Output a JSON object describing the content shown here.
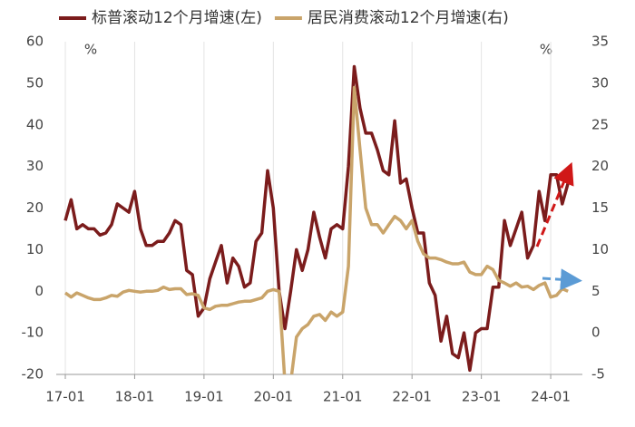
{
  "chart_data": {
    "type": "line",
    "categories": [
      "17-01",
      null,
      null,
      null,
      null,
      null,
      null,
      null,
      null,
      null,
      null,
      null,
      "18-01",
      null,
      null,
      null,
      null,
      null,
      null,
      null,
      null,
      null,
      null,
      null,
      "19-01",
      null,
      null,
      null,
      null,
      null,
      null,
      null,
      null,
      null,
      null,
      null,
      "20-01",
      null,
      null,
      null,
      null,
      null,
      null,
      null,
      null,
      null,
      null,
      null,
      "21-01",
      null,
      null,
      null,
      null,
      null,
      null,
      null,
      null,
      null,
      null,
      null,
      "22-01",
      null,
      null,
      null,
      null,
      null,
      null,
      null,
      null,
      null,
      null,
      null,
      "23-01",
      null,
      null,
      null,
      null,
      null,
      null,
      null,
      null,
      null,
      null,
      null,
      "24-01",
      null,
      null,
      null
    ],
    "series": [
      {
        "name": "标普滚动12个月增速(左)",
        "color": "#7b1c1c",
        "values": [
          17,
          22,
          15,
          16,
          15,
          15,
          13.5,
          14,
          16,
          21,
          20,
          19,
          24,
          15,
          11,
          11,
          12,
          12,
          14,
          17,
          16,
          5,
          4,
          -6,
          -4,
          3,
          7,
          11,
          2,
          8,
          6,
          1,
          2,
          12,
          14,
          29,
          20,
          0,
          -9,
          0,
          10,
          5,
          10,
          19,
          13,
          8,
          15,
          16,
          15,
          30,
          54,
          44,
          38,
          38,
          34,
          29,
          28,
          41,
          26,
          27,
          20,
          14,
          14,
          2,
          -1,
          -12,
          -6,
          -15,
          -16,
          -10,
          -19,
          -10,
          -9,
          -9,
          1,
          1,
          17,
          11,
          15,
          19,
          8,
          11,
          24,
          17,
          28,
          28,
          21,
          26
        ]
      },
      {
        "name": "居民消费滚动12个月增速(右)",
        "color": "#c9a46a",
        "axis": "y2",
        "values": [
          4.8,
          4.3,
          4.8,
          4.5,
          4.2,
          4,
          4,
          4.2,
          4.5,
          4.4,
          4.9,
          5.1,
          5,
          4.9,
          5,
          5,
          5.1,
          5.5,
          5.2,
          5.3,
          5.3,
          4.6,
          4.7,
          4.5,
          3,
          2.8,
          3.2,
          3.3,
          3.3,
          3.5,
          3.7,
          3.8,
          3.8,
          4,
          4.2,
          5,
          5.2,
          5,
          -6,
          -6,
          -0.5,
          0.5,
          1,
          2,
          2.2,
          1.5,
          2.5,
          2,
          2.5,
          8,
          29.5,
          22,
          15,
          13,
          13,
          12,
          13,
          14,
          13.5,
          12.5,
          13.5,
          11,
          9.5,
          9,
          9,
          8.8,
          8.5,
          8.3,
          8.3,
          8.5,
          7.3,
          7,
          7,
          8,
          7.6,
          6.3,
          6,
          5.6,
          6,
          5.5,
          5.6,
          5.2,
          5.7,
          6,
          4.3,
          4.5,
          5.3,
          5
        ]
      }
    ],
    "ylim": [
      -20,
      60
    ],
    "yticks": [
      -20,
      -10,
      0,
      10,
      20,
      30,
      40,
      50,
      60
    ],
    "y2lim": [
      -5,
      35
    ],
    "y2ticks": [
      -5,
      0,
      5,
      10,
      15,
      20,
      25,
      30,
      35
    ],
    "y_unit": "%",
    "y2_unit": "%",
    "grid": "x",
    "legend": "top"
  }
}
